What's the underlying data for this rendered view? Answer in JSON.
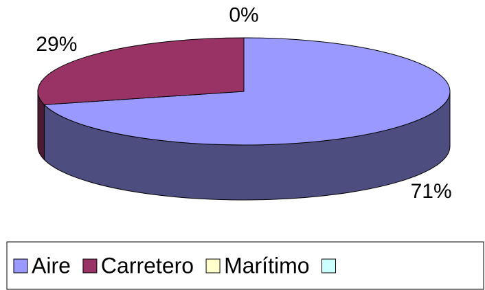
{
  "chart_data": {
    "type": "pie",
    "categories": [
      "Aire",
      "Carretero",
      "Marítimo",
      null
    ],
    "values": [
      71,
      29,
      0,
      0
    ],
    "value_labels": [
      "71%",
      "29%",
      "0%",
      null
    ],
    "colors": [
      "#9999ff",
      "#993366",
      "#ffffcc",
      "#ccffff"
    ],
    "side_colors": [
      "#4d4d80",
      "#4d1a33",
      "#80806a",
      "#6a8080"
    ],
    "legend": "bottom"
  }
}
